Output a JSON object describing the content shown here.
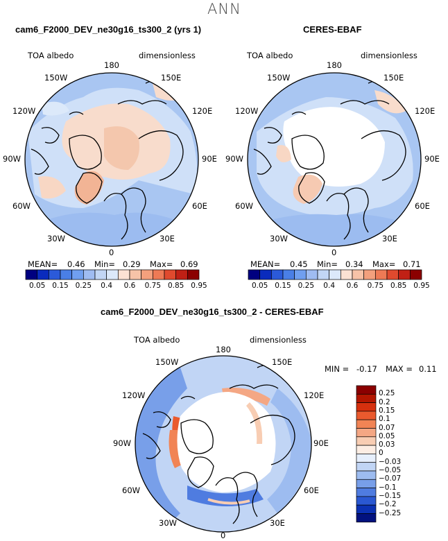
{
  "figure": {
    "title": "ANN"
  },
  "panels": [
    {
      "id": "model",
      "title": "cam6_F2000_DEV_ne30g16_ts300_2 (yrs 1)",
      "variable": "TOA albedo",
      "units": "dimensionless",
      "stats": {
        "mean_label": "MEAN=",
        "mean": "0.46",
        "min_label": "Min=",
        "min": "0.29",
        "max_label": "Max=",
        "max": "0.69"
      }
    },
    {
      "id": "obs",
      "title": "CERES-EBAF",
      "variable": "TOA albedo",
      "units": "dimensionless",
      "stats": {
        "mean_label": "MEAN=",
        "mean": "0.45",
        "min_label": "Min=",
        "min": "0.34",
        "max_label": "Max=",
        "max": "0.71"
      }
    },
    {
      "id": "diff",
      "title": "cam6_F2000_DEV_ne30g16_ts300_2 - CERES-EBAF",
      "variable": "TOA albedo",
      "units": "dimensionless",
      "stats": {
        "min_label": "MIN =",
        "min": "-0.17",
        "max_label": "MAX =",
        "max": "0.11"
      }
    }
  ],
  "longitude_labels": {
    "top": "180",
    "upper_left": "150W",
    "upper_right": "150E",
    "mid_upper_left": "120W",
    "mid_upper_right": "120E",
    "left": "90W",
    "right": "90E",
    "mid_lower_left": "60W",
    "mid_lower_right": "60E",
    "lower_left": "30W",
    "lower_right": "30E",
    "bottom": "0"
  },
  "abs_colorbar": {
    "labels": [
      "0.05",
      "0.15",
      "0.25",
      "0.4",
      "0.6",
      "0.75",
      "0.85",
      "0.95"
    ],
    "colors": [
      "#000080",
      "#0a2bbd",
      "#2b5ad9",
      "#4a7fe6",
      "#709ff0",
      "#9fbcf2",
      "#c2d6f5",
      "#dce9fa",
      "#fbe1d3",
      "#f7c3a8",
      "#f3a07d",
      "#ee7a55",
      "#e04a2e",
      "#c02015",
      "#8b0000"
    ]
  },
  "diff_colorbar": {
    "labels": [
      "0.25",
      "0.2",
      "0.15",
      "0.1",
      "0.07",
      "0.05",
      "0.03",
      "0",
      "-0.03",
      "-0.05",
      "-0.07",
      "-0.1",
      "-0.15",
      "-0.2",
      "-0.25"
    ],
    "colors": [
      "#8b0000",
      "#b31600",
      "#d6300e",
      "#ea5a2e",
      "#f18455",
      "#f4a784",
      "#f8cdb3",
      "#fcede3",
      "#e6effc",
      "#c1d5f5",
      "#9dbcf0",
      "#789fe9",
      "#4f7ce0",
      "#2a58d2",
      "#0b31b3",
      "#02127f"
    ]
  },
  "legend_colors": {
    "land_outline": "#000000",
    "ocean_fill": "#a9c6f2",
    "neutral": "#dce9fa",
    "positive": "#f7c3a8",
    "negative": "#4a7fe6"
  }
}
